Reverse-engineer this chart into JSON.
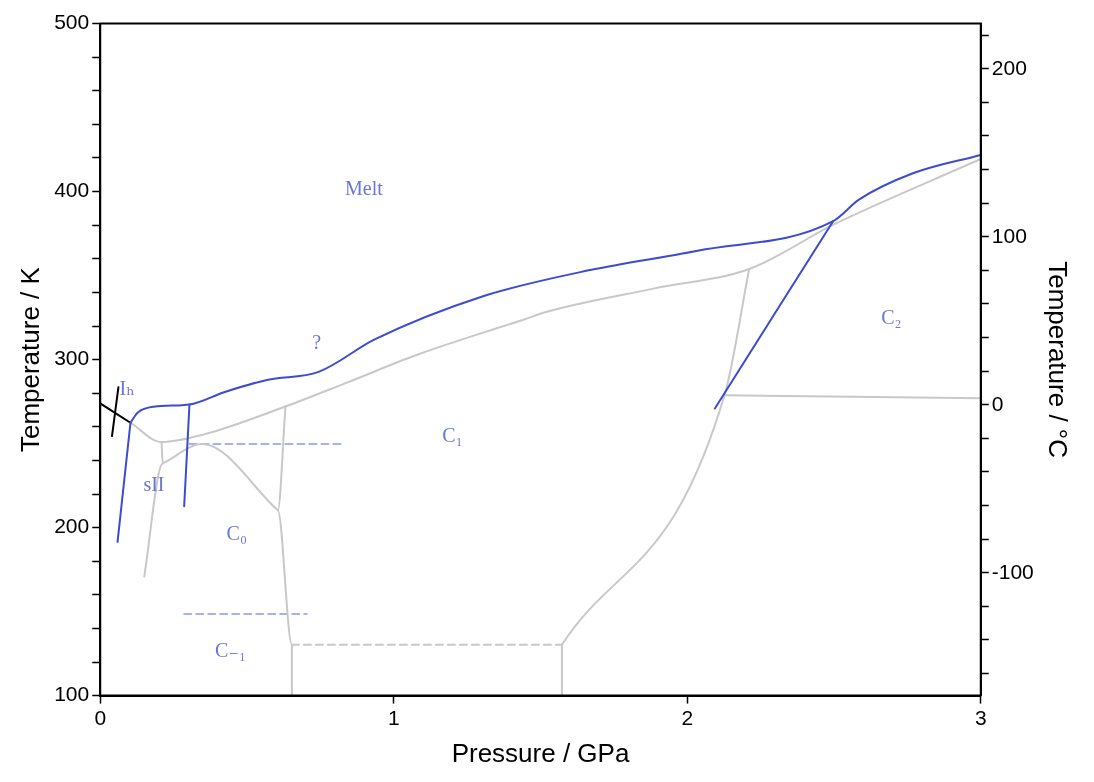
{
  "chart_data": {
    "type": "line",
    "xlabel": "Pressure / GPa",
    "ylabel": "Temperature / K",
    "y2label": "Temperature / °C",
    "xlim": [
      0,
      3
    ],
    "xticks": [
      0,
      1,
      2,
      3
    ],
    "ylim": [
      100,
      500
    ],
    "yticks": [
      100,
      {
        "value": 120,
        "label": null
      },
      {
        "value": 140,
        "label": null
      },
      {
        "value": 160,
        "label": null
      },
      {
        "value": 180,
        "label": null
      },
      200,
      {
        "value": 220,
        "label": null
      },
      {
        "value": 240,
        "label": null
      },
      {
        "value": 260,
        "label": null
      },
      {
        "value": 280,
        "label": null
      },
      300,
      {
        "value": 320,
        "label": null
      },
      {
        "value": 340,
        "label": null
      },
      {
        "value": 360,
        "label": null
      },
      {
        "value": 380,
        "label": null
      },
      400,
      {
        "value": 420,
        "label": null
      },
      {
        "value": 440,
        "label": null
      },
      {
        "value": 460,
        "label": null
      },
      {
        "value": 480,
        "label": null
      },
      500
    ],
    "y2lim": [
      -173.15,
      226.85
    ],
    "y2ticks": [
      {
        "value": -160,
        "label": null
      },
      {
        "value": -140,
        "label": null
      },
      {
        "value": -120,
        "label": null
      },
      -100,
      {
        "value": -80,
        "label": null
      },
      {
        "value": -60,
        "label": null
      },
      {
        "value": -40,
        "label": null
      },
      {
        "value": -20,
        "label": null
      },
      0,
      {
        "value": 20,
        "label": null
      },
      {
        "value": 40,
        "label": null
      },
      {
        "value": 60,
        "label": null
      },
      {
        "value": 80,
        "label": null
      },
      100,
      {
        "value": 120,
        "label": null
      },
      {
        "value": 140,
        "label": null
      },
      {
        "value": 160,
        "label": null
      },
      {
        "value": 180,
        "label": null
      },
      200,
      {
        "value": 220,
        "label": null
      }
    ],
    "grid": false,
    "legend": false,
    "marker": "none",
    "series": [
      {
        "color": "#3b4cd0",
        "x": [
          0.059,
          0.103
        ],
        "values": [
          191.5,
          262.4
        ]
      },
      {
        "color": "#3b4cd0",
        "x": [
          0.103,
          0.128,
          0.183,
          0.304,
          0.422,
          0.568,
          0.744,
          0.935,
          1.302,
          1.669,
          2.035,
          2.497,
          2.585,
          2.769,
          3.0
        ],
        "values": [
          262.4,
          268.5,
          272,
          273.3,
          280.6,
          287.9,
          292.7,
          312,
          337.6,
          353.3,
          364.8,
          382.4,
          395.2,
          410.9,
          421.8
        ]
      },
      {
        "color": "#3b4cd0",
        "x": [
          0.304,
          0.286
        ],
        "values": [
          273.3,
          212.7
        ]
      },
      {
        "color": "#3b4cd0",
        "x": [
          2.094,
          2.497
        ],
        "values": [
          270.9,
          382.4
        ]
      },
      {
        "color": "#000000",
        "x": [
          0,
          0.103
        ],
        "values": [
          273.9,
          262.4
        ]
      },
      {
        "color": "#000000",
        "x": [
          0.062,
          0.04
        ],
        "values": [
          283.6,
          254.5
        ]
      },
      {
        "color": "#c8c8c8",
        "x": [
          0.103,
          0.209,
          0.348,
          0.631,
          0.836,
          1.082,
          1.449,
          1.522,
          1.889,
          2.211,
          2.501,
          3.0
        ],
        "values": [
          262.4,
          250.9,
          255.2,
          272.1,
          286,
          303,
          324.2,
          328.5,
          342.4,
          353.9,
          380.6,
          419.4
        ]
      },
      {
        "color": "#c8c8c8",
        "x": [
          0.209,
          0.213,
          0.15
        ],
        "values": [
          250.9,
          238.2,
          170.9
        ]
      },
      {
        "color": "#c8c8c8",
        "x": [
          0.213,
          0.348,
          0.605
        ],
        "values": [
          238.2,
          249.7,
          210.3
        ]
      },
      {
        "color": "#c8c8c8",
        "x": [
          0.631,
          0.605,
          0.653,
          0.653
        ],
        "values": [
          272.1,
          210.3,
          130.3,
          100
        ]
      },
      {
        "color": "#c8c8c8",
        "line_style": "dashed",
        "x": [
          0.653,
          1.573
        ],
        "values": [
          130.3,
          130.3
        ]
      },
      {
        "color": "#c8c8c8",
        "x": [
          1.573,
          1.573
        ],
        "values": [
          100,
          130.3
        ]
      },
      {
        "color": "#c8c8c8",
        "x": [
          1.573,
          2.127,
          2.211
        ],
        "values": [
          130.3,
          278.8,
          353.9
        ]
      },
      {
        "color": "#c8c8c8",
        "x": [
          2.127,
          3.0
        ],
        "values": [
          278.8,
          277
        ]
      },
      {
        "color": "#a8b0f0",
        "line_style": "dashed",
        "x": [
          0.304,
          0.832
        ],
        "values": [
          249.7,
          249.7
        ]
      },
      {
        "color": "#a8b0f0",
        "line_style": "dashed",
        "x": [
          0.286,
          0.704
        ],
        "values": [
          148.5,
          148.5
        ]
      }
    ],
    "annotations": [
      "Melt",
      "?",
      "Iₕ",
      "sII",
      "C₀",
      "C₋₁",
      "C₁",
      "C₂"
    ]
  }
}
